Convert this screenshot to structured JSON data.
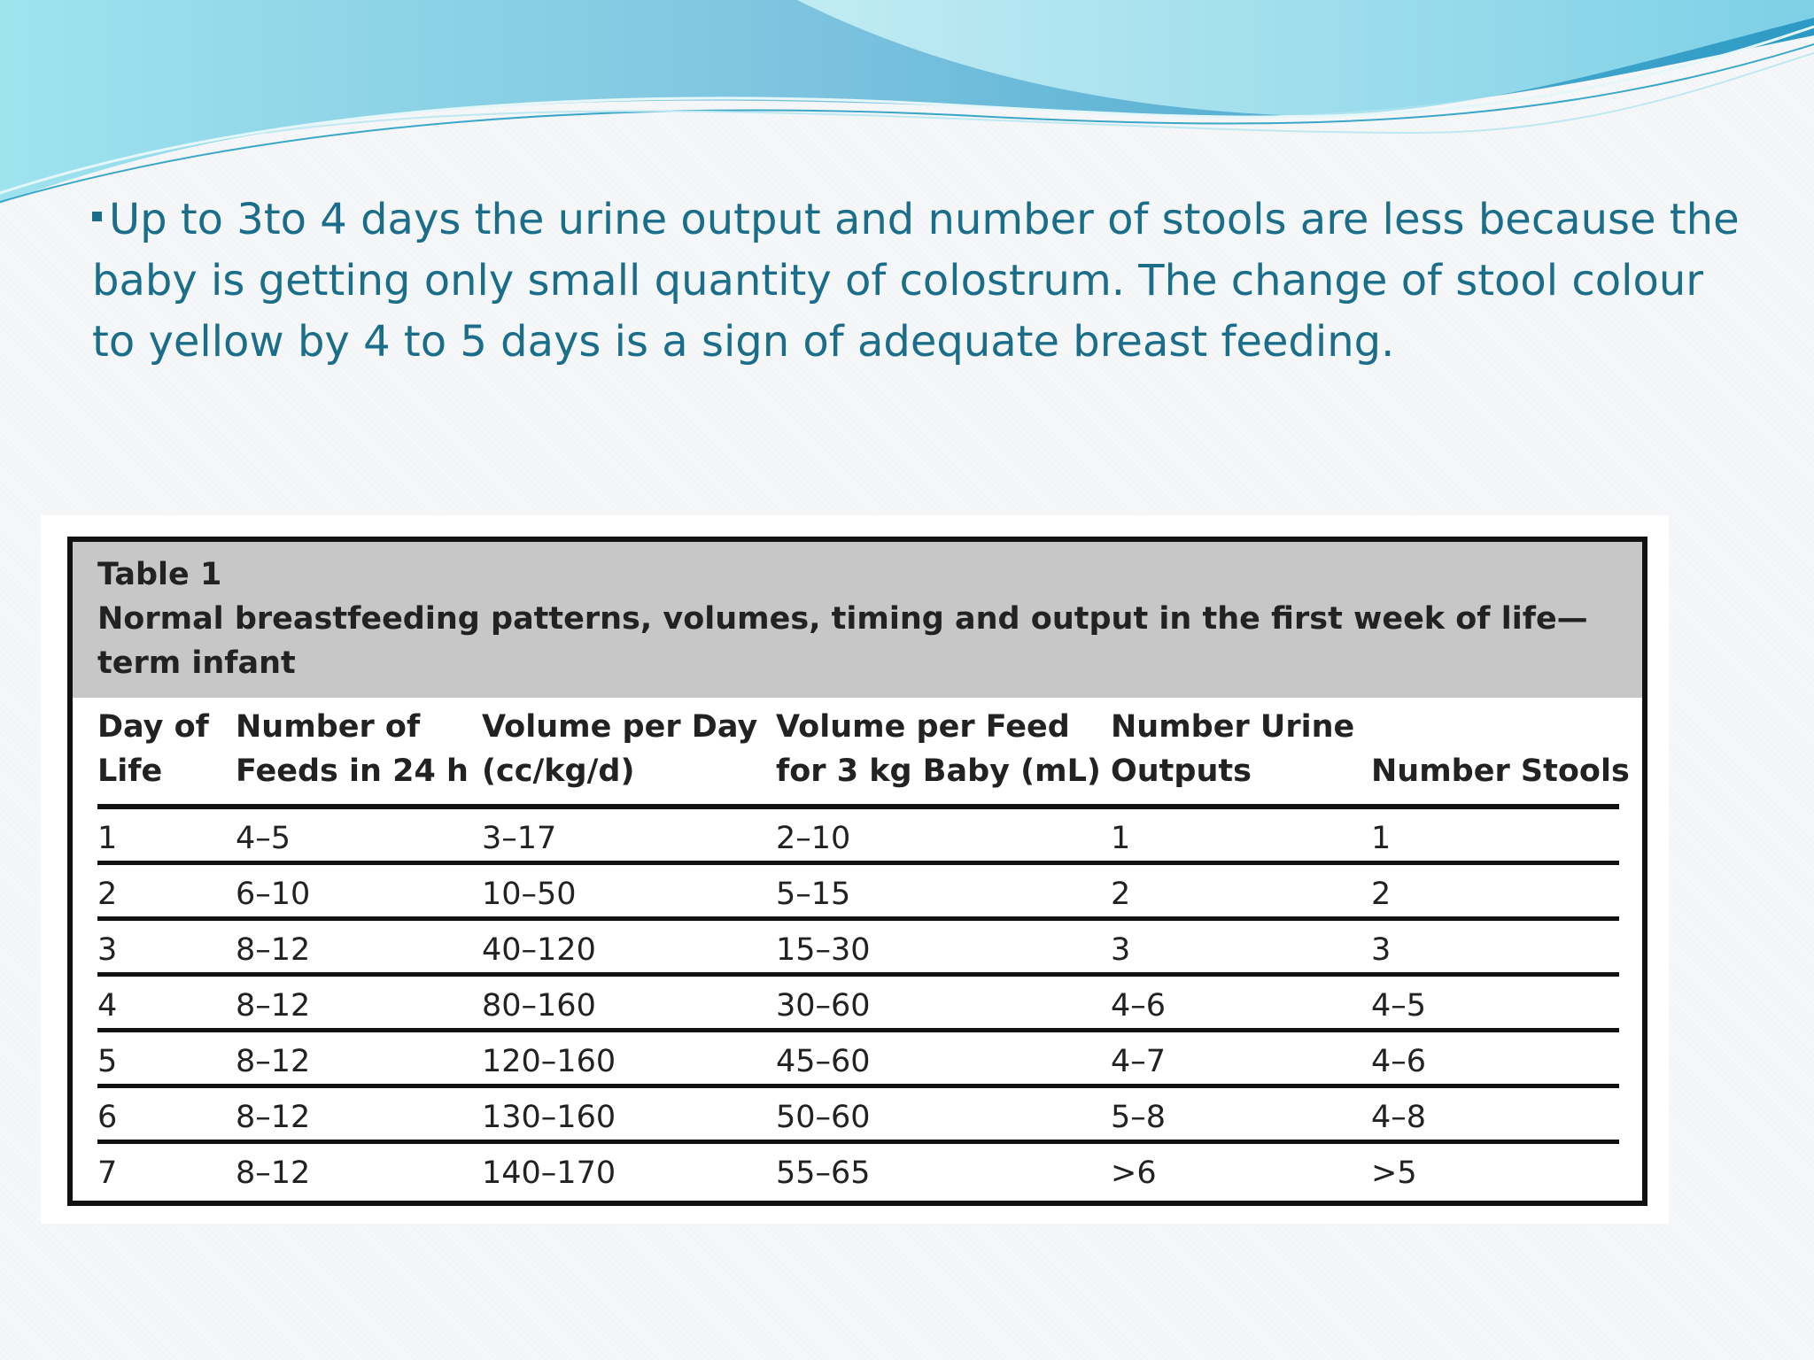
{
  "intro_text": "Up to 3to 4 days the urine output and number of stools are less because the baby is getting only small quantity of colostrum. The change of stool colour to yellow by 4 to 5 days is a sign of adequate breast feeding.",
  "table": {
    "label": "Table 1",
    "title": "Normal breastfeeding patterns, volumes, timing and output in the first week of life—term infant",
    "columns": [
      "Day of\nLife",
      "Number of\nFeeds in 24 h",
      "Volume per Day\n(cc/kg/d)",
      "Volume per Feed\nfor 3 kg Baby (mL)",
      "Number Urine\nOutputs",
      "\nNumber Stools"
    ],
    "rows": [
      [
        "1",
        "4–5",
        "3–17",
        "2–10",
        "1",
        "1"
      ],
      [
        "2",
        "6–10",
        "10–50",
        "5–15",
        "2",
        "2"
      ],
      [
        "3",
        "8–12",
        "40–120",
        "15–30",
        "3",
        "3"
      ],
      [
        "4",
        "8–12",
        "80–160",
        "30–60",
        "4–6",
        "4–5"
      ],
      [
        "5",
        "8–12",
        "120–160",
        "45–60",
        "4–7",
        "4–6"
      ],
      [
        "6",
        "8–12",
        "130–160",
        "50–60",
        "5–8",
        "4–8"
      ],
      [
        "7",
        "8–12",
        "140–170",
        "55–65",
        ">6",
        ">5"
      ]
    ]
  },
  "colors": {
    "text_accent": "#1a6e8a",
    "wave_light": "#7fd8e8",
    "wave_dark": "#1e8fb0",
    "table_header_bg": "#c7c7c7"
  }
}
